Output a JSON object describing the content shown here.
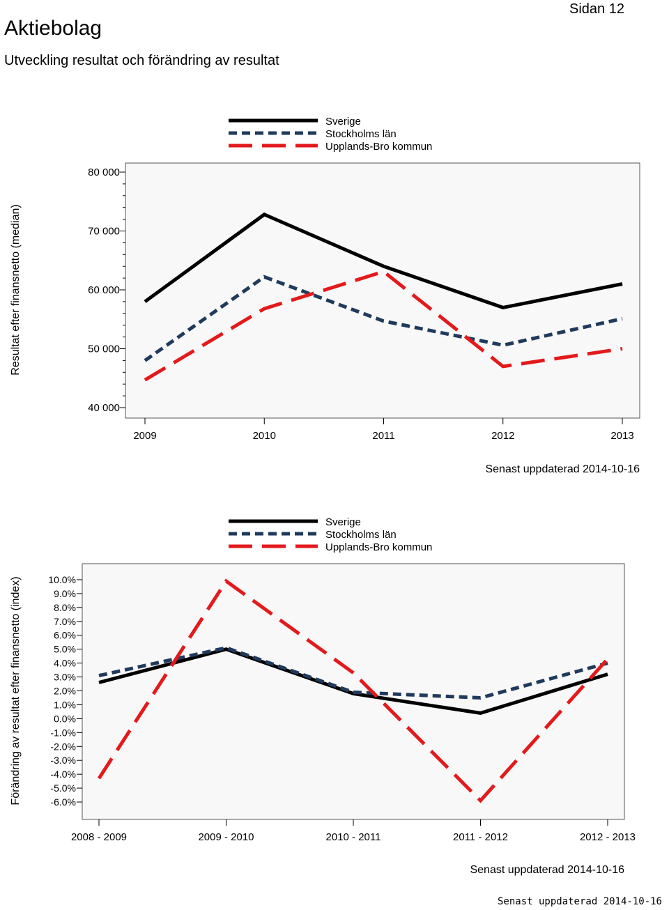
{
  "header": {
    "title": "Aktiebolag",
    "subtitle": "Utveckling resultat och förändring av resultat",
    "page_number": "Sidan 12"
  },
  "footer": {
    "updated_mono": "Senast uppdaterad 2014-10-16"
  },
  "series_colors": {
    "Sverige": "#000000",
    "Stockholms län": "#1f3a5c",
    "Upplands-Bro kommun": "#e31a1c"
  },
  "chart_data": [
    {
      "type": "line",
      "ylabel": "Resultat efter finansnetto (median)",
      "xlabel": "",
      "categories": [
        "2009",
        "2010",
        "2011",
        "2012",
        "2013"
      ],
      "ylim": [
        40000,
        80000
      ],
      "yticks": [
        40000,
        50000,
        60000,
        70000,
        80000
      ],
      "ytick_labels": [
        "40 000",
        "50 000",
        "60 000",
        "70 000",
        "80 000"
      ],
      "series": [
        {
          "name": "Sverige",
          "values": [
            58000,
            72800,
            64000,
            57000,
            61000
          ]
        },
        {
          "name": "Stockholms län",
          "values": [
            48000,
            62200,
            54700,
            50600,
            55100
          ]
        },
        {
          "name": "Upplands-Bro kommun",
          "values": [
            44700,
            56800,
            63100,
            47000,
            50000
          ]
        }
      ],
      "legend": [
        "Sverige",
        "Stockholms län",
        "Upplands-Bro kommun"
      ],
      "legend_position": "top-center",
      "note": "Senast uppdaterad 2014-10-16"
    },
    {
      "type": "line",
      "ylabel": "Förändring av resultat efter finansnetto (index)",
      "xlabel": "",
      "categories": [
        "2008 - 2009",
        "2009 - 2010",
        "2010 - 2011",
        "2011 - 2012",
        "2012 - 2013"
      ],
      "ylim": [
        -6.5,
        10.5
      ],
      "yticks": [
        10,
        9,
        8,
        7,
        6,
        5,
        4,
        3,
        2,
        1,
        0,
        -1,
        -2,
        -3,
        -4,
        -5,
        -6
      ],
      "ytick_labels": [
        "10.0%",
        "9.0%",
        "8.0%",
        "7.0%",
        "6.0%",
        "5.0%",
        "4.0%",
        "3.0%",
        "2.0%",
        "1.0%",
        "0.0%",
        "-1.0%",
        "-2.0%",
        "-3.0%",
        "-4.0%",
        "-5.0%",
        "-6.0%"
      ],
      "series": [
        {
          "name": "Sverige",
          "values": [
            2.6,
            5.0,
            1.8,
            0.4,
            3.2
          ]
        },
        {
          "name": "Stockholms län",
          "values": [
            3.1,
            5.1,
            1.9,
            1.5,
            4.0
          ]
        },
        {
          "name": "Upplands-Bro kommun",
          "values": [
            -4.3,
            9.9,
            3.3,
            -5.9,
            4.3
          ]
        }
      ],
      "legend": [
        "Sverige",
        "Stockholms län",
        "Upplands-Bro kommun"
      ],
      "legend_position": "top-center",
      "note": "Senast uppdaterad 2014-10-16"
    }
  ]
}
